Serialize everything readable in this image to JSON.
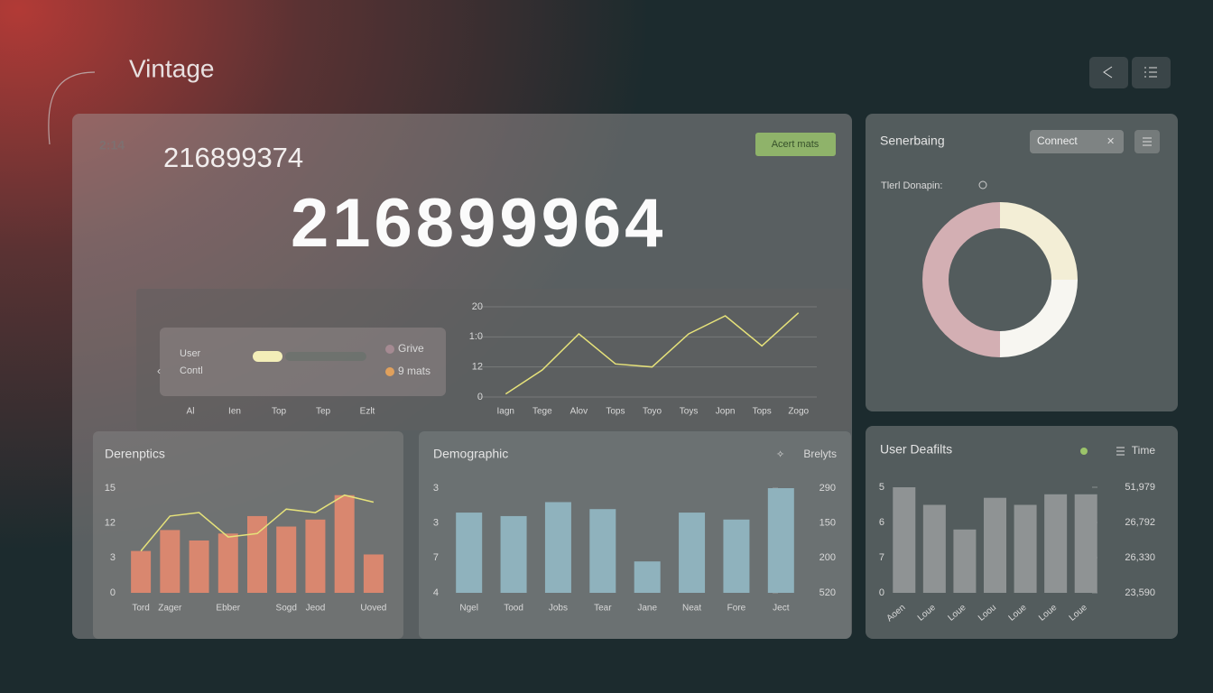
{
  "header": {
    "title": "Vintage"
  },
  "summary": {
    "time": "2:14",
    "number": "216899374",
    "big_number": "216899964",
    "button": "Acert mats"
  },
  "trend": {
    "type": "line",
    "legend": [
      "User",
      "Contl"
    ],
    "legend_right": [
      {
        "name": "Grive",
        "color": "#a58a92"
      },
      {
        "name": "9 mats",
        "color": "#e0a05c"
      }
    ],
    "left_labels": [
      "Al",
      "Ien",
      "Top",
      "Tep",
      "Ezlt"
    ],
    "categories": [
      "Iagn",
      "Tege",
      "Alov",
      "Tops",
      "Toyo",
      "Toys",
      "Jopn",
      "Tops",
      "Zogo"
    ],
    "series": [
      {
        "type": "line",
        "color": "#e6e27a",
        "values": [
          0.1,
          0.9,
          2.1,
          1.1,
          1.0,
          2.1,
          2.7,
          1.7,
          2.8
        ]
      }
    ],
    "ylim": [
      0,
      3
    ],
    "yticks": [
      {
        "value": 0,
        "label": "0"
      },
      {
        "value": 1,
        "label": "12"
      },
      {
        "value": 2,
        "label": "1:0"
      },
      {
        "value": 3,
        "label": "20"
      }
    ],
    "grid": true
  },
  "derenptics": {
    "type": "bar",
    "title": "Derenptics",
    "categories": [
      "Tord",
      "Zager",
      null,
      "Ebber",
      null,
      "Sogd",
      "Jeod",
      null,
      "Uoved"
    ],
    "series": [
      {
        "type": "bar",
        "color": "#d9876f",
        "values": [
          1.2,
          1.8,
          1.5,
          1.7,
          2.2,
          1.9,
          2.1,
          2.8,
          1.1
        ]
      },
      {
        "type": "line",
        "color": "#e6e27a",
        "values": [
          1.2,
          2.2,
          2.3,
          1.6,
          1.7,
          2.4,
          2.3,
          2.8,
          2.6
        ]
      }
    ],
    "ylim": [
      0,
      3
    ],
    "yticks": [
      0,
      {
        "value": 1,
        "label": "3"
      },
      {
        "value": 2,
        "label": "12"
      },
      {
        "value": 3,
        "label": "15"
      }
    ],
    "grid": false
  },
  "demographic": {
    "type": "bar",
    "title": "Demographic",
    "action": "Brelyts",
    "categories": [
      "Ngel",
      "Tood",
      "Jobs",
      "Tear",
      "Jane",
      "Neat",
      "Fore",
      "Ject"
    ],
    "series": [
      {
        "type": "bar",
        "color": "#8fb2bd",
        "values": [
          2.3,
          2.2,
          2.6,
          2.4,
          0.9,
          2.3,
          2.1,
          3.0
        ]
      }
    ],
    "ylim": [
      0,
      3
    ],
    "yticks": [
      {
        "value": 0,
        "label": "4"
      },
      {
        "value": 1,
        "label": "7"
      },
      {
        "value": 2,
        "label": "3"
      },
      {
        "value": 3,
        "label": "3"
      }
    ],
    "y2lim": [
      0,
      3
    ],
    "y2ticks": [
      {
        "value": 0,
        "label": "520"
      },
      {
        "value": 1,
        "label": "200"
      },
      {
        "value": 2,
        "label": "150"
      },
      {
        "value": 3,
        "label": "290"
      }
    ],
    "grid": false
  },
  "sidebar": {
    "title": "Senerbaing",
    "button": "Connect",
    "chart": {
      "type": "pie",
      "title": "Tlerl Donapin:",
      "values": [
        25,
        25,
        50
      ],
      "colors": [
        "#f3eed6",
        "#f7f6f1",
        "#d3afb3"
      ]
    }
  },
  "user_defaults": {
    "type": "bar",
    "title": "User Deafilts",
    "menu": "Time",
    "categories": [
      "Aoen",
      "Loue",
      "Loue",
      "Loou",
      "Loue",
      "Loue",
      "Loue"
    ],
    "series": [
      {
        "type": "bar",
        "color": "#8f9394",
        "values": [
          3.0,
          2.5,
          1.8,
          2.7,
          2.5,
          2.8,
          2.8
        ]
      }
    ],
    "ylim": [
      0,
      3
    ],
    "yticks": [
      0,
      {
        "value": 1,
        "label": "7"
      },
      {
        "value": 2,
        "label": "6"
      },
      {
        "value": 3,
        "label": "5"
      }
    ],
    "y2lim": [
      0,
      3
    ],
    "y2ticks": [
      {
        "value": 0,
        "label": "23,590"
      },
      {
        "value": 1,
        "label": "26,330"
      },
      {
        "value": 2,
        "label": "26,792"
      },
      {
        "value": 3,
        "label": "51,979"
      }
    ],
    "grid": false
  }
}
